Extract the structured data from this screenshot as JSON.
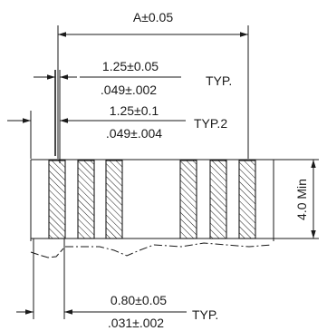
{
  "dimensions": {
    "overall_width": "A±0.05",
    "pitch_mm": "1.25±0.05",
    "pitch_in": ".049±.002",
    "pitch_note": "TYP.",
    "pitch2_mm": "1.25±0.1",
    "pitch2_in": ".049±.004",
    "pitch2_note": "TYP.2",
    "height": "4.0 Min",
    "pad_width_mm": "0.80±0.05",
    "pad_width_in": ".031±.002",
    "pad_width_note": "TYP."
  },
  "pads": {
    "left_group_count": 3,
    "right_group_count": 3
  }
}
